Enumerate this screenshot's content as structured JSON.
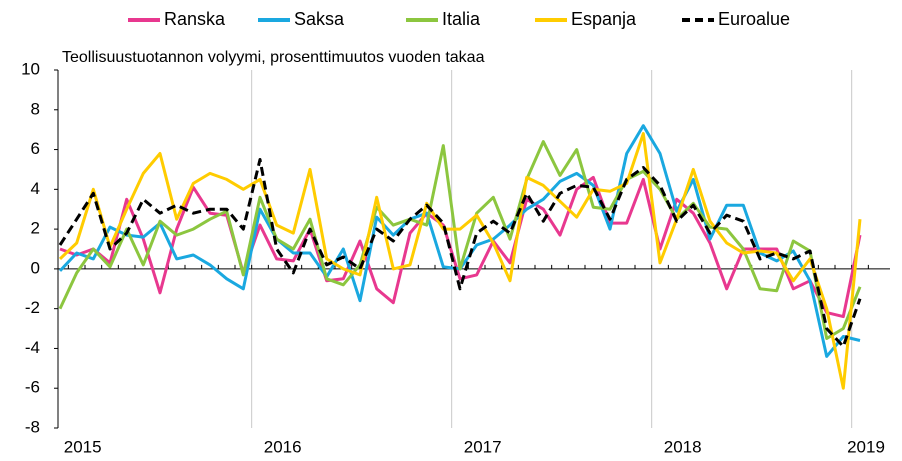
{
  "chart_data": {
    "type": "line",
    "title": "Teollisuustuotannon volyymi, prosenttimuutos vuoden takaa",
    "categories": [
      null,
      "2015",
      null,
      null,
      null,
      null,
      null,
      null,
      null,
      null,
      null,
      null,
      null,
      "2016",
      null,
      null,
      null,
      null,
      null,
      null,
      null,
      null,
      null,
      null,
      null,
      "2017",
      null,
      null,
      null,
      null,
      null,
      null,
      null,
      null,
      null,
      null,
      null,
      "2018",
      null,
      null,
      null,
      null,
      null,
      null,
      null,
      null,
      null,
      null,
      "2019"
    ],
    "series": [
      {
        "name": "Ranska",
        "color": "#e8388f",
        "values": [
          1.0,
          0.7,
          1.0,
          0.3,
          3.5,
          1.5,
          -1.2,
          2.0,
          4.1,
          2.8,
          2.7,
          -0.2,
          2.2,
          0.5,
          0.4,
          2.0,
          -0.6,
          -0.5,
          1.4,
          -1.0,
          -1.7,
          1.8,
          2.8,
          2.2,
          -0.5,
          -0.3,
          1.4,
          0.3,
          3.5,
          3.0,
          1.7,
          4.0,
          4.6,
          2.3,
          2.3,
          4.5,
          1.0,
          3.5,
          2.8,
          1.3,
          -1.0,
          1.0,
          1.0,
          1.0,
          -1.0,
          -0.6,
          -2.2,
          -2.4,
          1.7
        ]
      },
      {
        "name": "Saksa",
        "color": "#1aa8e0",
        "values": [
          -0.1,
          0.8,
          0.5,
          2.1,
          1.7,
          1.6,
          2.3,
          0.5,
          0.7,
          0.2,
          -0.5,
          -1.0,
          3.0,
          1.5,
          0.8,
          0.8,
          -0.4,
          1.0,
          -1.6,
          2.6,
          1.7,
          2.5,
          2.8,
          0.1,
          0.0,
          1.2,
          1.5,
          2.2,
          3.0,
          3.5,
          4.4,
          4.8,
          4.2,
          2.0,
          5.8,
          7.2,
          5.8,
          2.9,
          4.5,
          1.5,
          3.2,
          3.2,
          0.8,
          0.4,
          0.9,
          -0.6,
          -4.4,
          -3.4,
          -3.6
        ]
      },
      {
        "name": "Italia",
        "color": "#8cc63f",
        "values": [
          -2.0,
          -0.2,
          1.0,
          0.1,
          2.0,
          0.2,
          2.4,
          1.7,
          2.0,
          2.5,
          2.9,
          -0.3,
          3.6,
          1.5,
          1.0,
          2.5,
          -0.5,
          -0.8,
          0.2,
          3.1,
          2.2,
          2.5,
          2.2,
          6.2,
          0.0,
          2.8,
          3.6,
          1.5,
          4.5,
          6.4,
          4.7,
          6.0,
          3.1,
          3.0,
          4.5,
          4.9,
          4.0,
          2.5,
          3.3,
          2.1,
          2.0,
          1.0,
          -1.0,
          -1.1,
          1.4,
          0.9,
          -3.5,
          -3.0,
          -0.9
        ]
      },
      {
        "name": "Espanja",
        "color": "#ffcc00",
        "values": [
          0.5,
          1.3,
          4.0,
          1.1,
          3.0,
          4.8,
          5.8,
          2.5,
          4.3,
          4.8,
          4.5,
          4.0,
          4.5,
          2.2,
          1.8,
          5.0,
          0.5,
          0.0,
          -0.3,
          3.6,
          0.0,
          0.2,
          3.3,
          2.0,
          2.0,
          2.7,
          1.3,
          -0.6,
          4.6,
          4.2,
          3.4,
          2.6,
          4.0,
          3.9,
          4.3,
          6.8,
          0.3,
          2.5,
          5.0,
          2.4,
          1.3,
          0.8,
          0.9,
          0.8,
          -0.6,
          0.5,
          -2.0,
          -6.0,
          2.5
        ]
      },
      {
        "name": "Euroalue",
        "color": "#000000",
        "dashed": true,
        "values": [
          1.2,
          2.5,
          3.8,
          1.0,
          1.8,
          3.5,
          2.8,
          3.2,
          2.8,
          3.0,
          3.0,
          2.0,
          5.5,
          1.0,
          -0.2,
          2.0,
          0.2,
          0.6,
          0.0,
          2.0,
          1.4,
          2.5,
          3.2,
          2.3,
          -1.0,
          1.8,
          2.4,
          1.8,
          3.8,
          2.4,
          3.8,
          4.2,
          4.1,
          2.5,
          4.5,
          5.1,
          4.2,
          2.4,
          3.2,
          1.8,
          2.7,
          2.4,
          0.5,
          0.8,
          0.5,
          0.9,
          -3.0,
          -3.9,
          -1.5
        ]
      }
    ],
    "ylim": [
      -8,
      10
    ],
    "yticks": [
      -8,
      -6,
      -4,
      -2,
      0,
      2,
      4,
      6,
      8,
      10
    ],
    "grid": "x",
    "legend": "top"
  }
}
